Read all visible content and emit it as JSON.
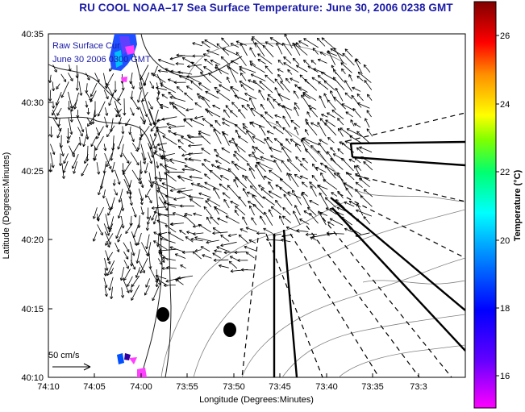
{
  "title": "RU COOL  NOAA–17  Sea Surface Temperature:  June 30, 2006 0238 GMT",
  "inset_lines": [
    "Raw Surface Cur",
    "June 30 2006 0300 GMT"
  ],
  "scale_label": "50 cm/s",
  "axes": {
    "xlabel": "Longitude (Degrees:Minutes)",
    "ylabel": "Latitude (Degrees:Minutes)",
    "xticks": [
      "74:10",
      "74:05",
      "74:00",
      "73:55",
      "73:50",
      "73:45",
      "73:40",
      "73:35",
      "73:3"
    ],
    "yticks": [
      "40:35",
      "40:30",
      "40:25",
      "40:20",
      "40:15",
      "40:10"
    ]
  },
  "colorbar": {
    "title": "Temperature (°C)",
    "ticks": [
      "26",
      "24",
      "22",
      "20",
      "18",
      "16"
    ],
    "colors": [
      "#8b0000",
      "#ff0000",
      "#ff8000",
      "#ffff00",
      "#80ff00",
      "#00ff80",
      "#00ffff",
      "#0080ff",
      "#0000ff",
      "#8000ff",
      "#ff00ff"
    ]
  }
}
